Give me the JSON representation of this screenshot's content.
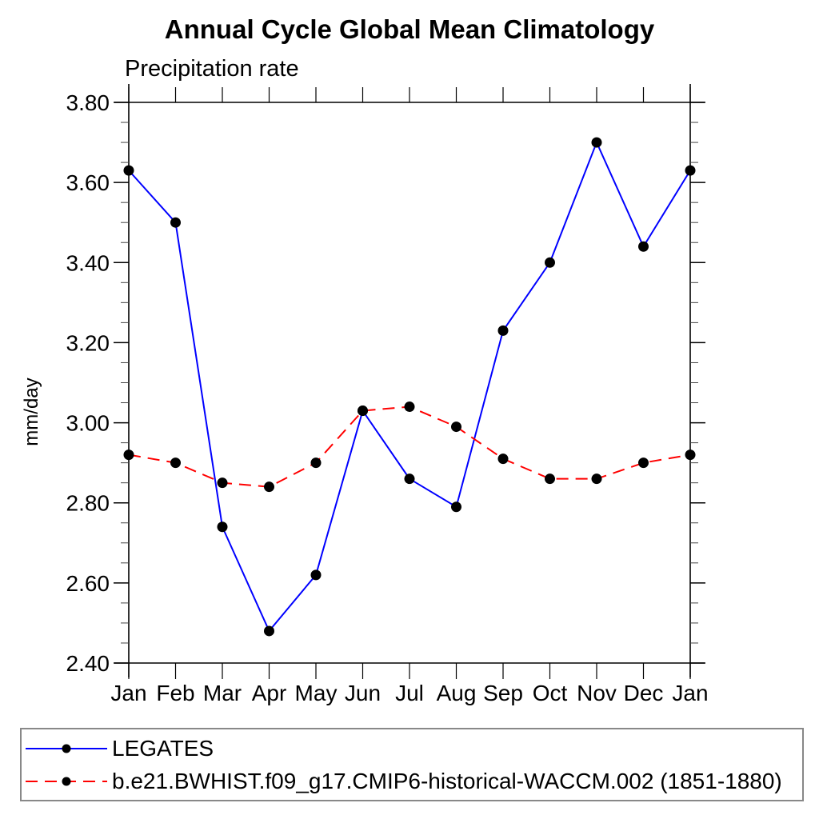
{
  "chart_data": {
    "type": "line",
    "title": "Annual Cycle Global Mean Climatology",
    "subtitle": "Precipitation rate",
    "ylabel": "mm/day",
    "xlabel": "",
    "categories": [
      "Jan",
      "Feb",
      "Mar",
      "Apr",
      "May",
      "Jun",
      "Jul",
      "Aug",
      "Sep",
      "Oct",
      "Nov",
      "Dec",
      "Jan"
    ],
    "ylim": [
      2.4,
      3.8
    ],
    "ytick_step": 0.2,
    "yminor_step": 0.05,
    "ytick_format_decimals": 2,
    "grid": false,
    "legend_position": "bottom",
    "axis_color": "#000000",
    "marker_shape": "filled-circle",
    "marker_color": "#000000",
    "series": [
      {
        "name": "LEGATES",
        "color": "#0000ff",
        "line_style": "solid",
        "values": [
          3.63,
          3.5,
          2.74,
          2.48,
          2.62,
          3.03,
          2.86,
          2.79,
          3.23,
          3.4,
          3.7,
          3.44,
          3.63
        ]
      },
      {
        "name": "b.e21.BWHIST.f09_g17.CMIP6-historical-WACCM.002 (1851-1880)",
        "color": "#ff0000",
        "line_style": "dashed",
        "values": [
          2.92,
          2.9,
          2.85,
          2.84,
          2.9,
          3.03,
          3.04,
          2.99,
          2.91,
          2.86,
          2.86,
          2.9,
          2.92
        ]
      }
    ]
  }
}
